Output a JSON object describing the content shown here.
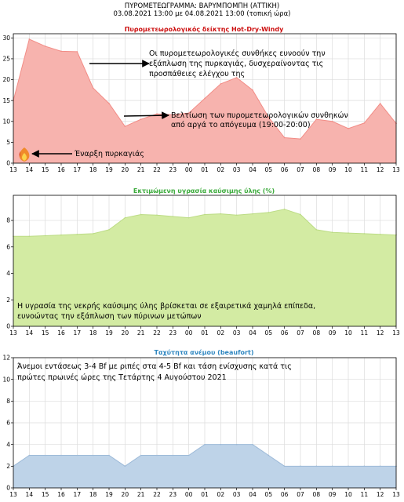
{
  "header": {
    "title": "ΠΥΡΟΜΕΤΕΩΓΡΑΜΜΑ: ΒΑΡΥΜΠΟΜΠΗ (ΑΤΤΙΚΗ)",
    "subtitle": "03.08.2021 13:00 με 04.08.2021 13:00 (τοπική ώρα)"
  },
  "chart_data": [
    {
      "type": "area",
      "title": "Πυρομετεωρολογικός δείκτης Hot-Dry-Windy",
      "title_color": "#cc1010",
      "fill": "#f7b3ae",
      "stroke": "#f28c86",
      "x": [
        "13",
        "14",
        "15",
        "16",
        "17",
        "18",
        "19",
        "20",
        "21",
        "22",
        "23",
        "00",
        "01",
        "02",
        "03",
        "04",
        "05",
        "06",
        "07",
        "08",
        "09",
        "10",
        "11",
        "12",
        "13"
      ],
      "values": [
        15,
        29.7,
        28,
        26.8,
        26.7,
        18,
        14.3,
        8.8,
        10.5,
        11.8,
        11.6,
        12,
        15.5,
        19,
        20.5,
        17.5,
        11,
        6.1,
        5.8,
        10.5,
        10,
        8.3,
        9.6,
        14.3,
        9.5
      ],
      "ylim": [
        0,
        31
      ],
      "yticks": [
        0,
        5,
        10,
        15,
        20,
        25,
        30
      ],
      "grid": true,
      "annotations": [
        "Οι πυρομετεωρολογικές συνθήκες ευνοούν την",
        "εξάπλωση της πυρκαγιάς, δυσχεραίνοντας τις",
        "προσπάθειες ελέγχου της",
        "Βελτίωση των πυρομετεωρολογικών συνθηκών",
        "από αργά το απόγευμα (19:00-20:00)",
        "Έναρξη πυρκαγιάς"
      ]
    },
    {
      "type": "area",
      "title": "Εκτιμώμενη υγρασία καύσιμης ύλης (%)",
      "title_color": "#3cab3c",
      "fill": "#d3eba3",
      "stroke": "#bcdc85",
      "x": [
        "13",
        "14",
        "15",
        "16",
        "17",
        "18",
        "19",
        "20",
        "21",
        "22",
        "23",
        "00",
        "01",
        "02",
        "03",
        "04",
        "05",
        "06",
        "07",
        "08",
        "09",
        "10",
        "11",
        "12",
        "13"
      ],
      "values": [
        6.8,
        6.8,
        6.85,
        6.9,
        6.95,
        7.0,
        7.3,
        8.2,
        8.45,
        8.4,
        8.3,
        8.2,
        8.45,
        8.5,
        8.4,
        8.5,
        8.6,
        8.85,
        8.45,
        7.3,
        7.1,
        7.05,
        7.0,
        6.95,
        6.9
      ],
      "ylim": [
        0,
        9.9
      ],
      "yticks": [
        0,
        2,
        4,
        6,
        8
      ],
      "grid": true,
      "annotations": [
        "Η υγρασία της νεκρής καύσιμης ύλης βρίσκεται σε εξαιρετικά χαμηλά επίπεδα,",
        "ευνοώντας την εξάπλωση των πύρινων μετώπων"
      ]
    },
    {
      "type": "area",
      "title": "Ταχύτητα ανέμου (beaufort)",
      "title_color": "#2e86c0",
      "fill": "#bed3e8",
      "stroke": "#9dbad8",
      "x": [
        "13",
        "14",
        "15",
        "16",
        "17",
        "18",
        "19",
        "20",
        "21",
        "22",
        "23",
        "00",
        "01",
        "02",
        "03",
        "04",
        "05",
        "06",
        "07",
        "08",
        "09",
        "10",
        "11",
        "12",
        "13"
      ],
      "values": [
        2,
        3,
        3,
        3,
        3,
        3,
        3,
        2,
        3,
        3,
        3,
        3,
        4,
        4,
        4,
        4,
        3,
        2,
        2,
        2,
        2,
        2,
        2,
        2,
        2
      ],
      "ylim": [
        0,
        12
      ],
      "yticks": [
        0,
        2,
        4,
        6,
        8,
        10,
        12
      ],
      "grid": true,
      "annotations": [
        "Άνεμοι εντάσεως 3-4 Bf με ριπές στα 4-5 Bf και τάση ενίσχυσης κατά τις",
        "πρώτες πρωινές ώρες της Τετάρτης 4 Αυγούστου 2021"
      ]
    }
  ],
  "icons": {
    "fire": "fire-icon"
  }
}
